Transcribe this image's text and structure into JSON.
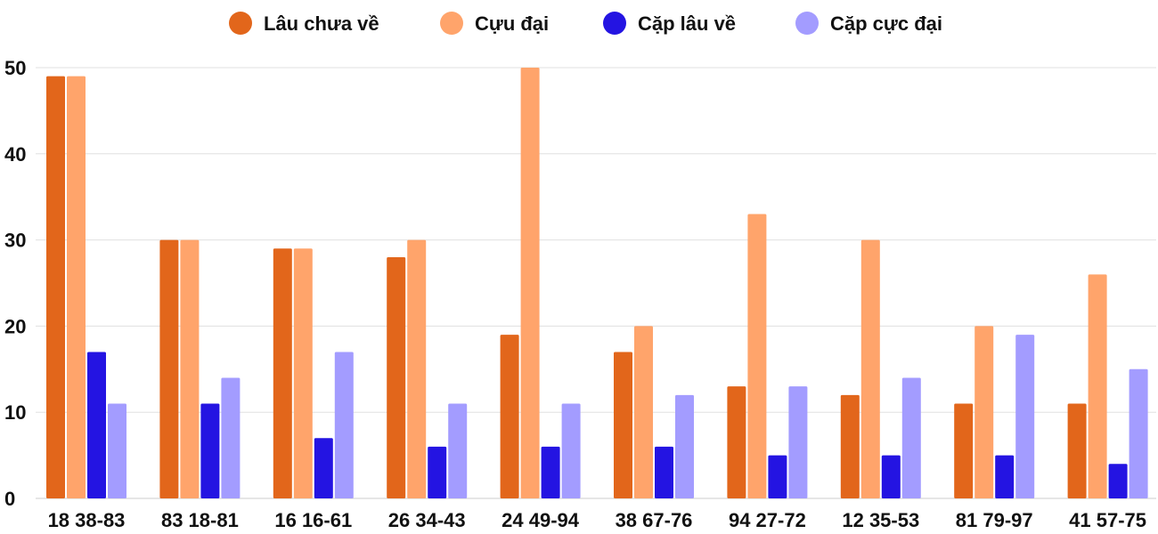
{
  "chart_data": {
    "type": "bar",
    "title": "",
    "xlabel": "",
    "ylabel": "",
    "ylim": [
      0,
      50
    ],
    "yticks": [
      0,
      10,
      20,
      30,
      40,
      50
    ],
    "grid": true,
    "legend_position": "top-center",
    "categories": [
      "18 38-83",
      "83 18-81",
      "16 16-61",
      "26 34-43",
      "24 49-94",
      "38 67-76",
      "94 27-72",
      "12 35-53",
      "81 79-97",
      "41 57-75"
    ],
    "series": [
      {
        "name": "Lâu chưa về",
        "color": "#e2661b",
        "values": [
          49,
          30,
          29,
          28,
          19,
          17,
          13,
          12,
          11,
          11
        ]
      },
      {
        "name": "Cựu đại",
        "color": "#ffa46b",
        "values": [
          49,
          30,
          29,
          30,
          50,
          20,
          33,
          30,
          20,
          26
        ]
      },
      {
        "name": "Cặp lâu về",
        "color": "#2414e2",
        "values": [
          17,
          11,
          7,
          6,
          6,
          6,
          5,
          5,
          5,
          4
        ]
      },
      {
        "name": "Cặp cực đại",
        "color": "#a39cff",
        "values": [
          11,
          14,
          17,
          11,
          11,
          12,
          13,
          14,
          19,
          15
        ]
      }
    ]
  }
}
